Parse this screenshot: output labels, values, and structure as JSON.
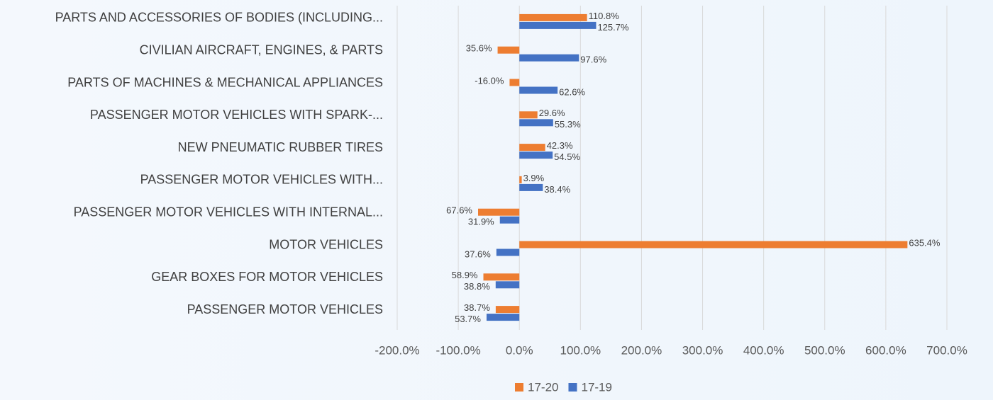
{
  "chart_data": {
    "type": "barh",
    "categories": [
      "PARTS AND ACCESSORIES OF BODIES (INCLUDING...",
      "CIVILIAN AIRCRAFT, ENGINES, & PARTS",
      "PARTS OF MACHINES & MECHANICAL APPLIANCES",
      "PASSENGER MOTOR VEHICLES WITH SPARK-...",
      "NEW PNEUMATIC RUBBER TIRES",
      "PASSENGER MOTOR VEHICLES WITH...",
      "PASSENGER MOTOR VEHICLES WITH INTERNAL...",
      "MOTOR VEHICLES",
      "GEAR BOXES FOR MOTOR VEHICLES",
      "PASSENGER MOTOR VEHICLES"
    ],
    "series": [
      {
        "name": "17-20",
        "color": "#ed7d31",
        "values": [
          110.8,
          -35.6,
          -16.0,
          29.6,
          42.3,
          3.9,
          -67.6,
          635.4,
          -58.9,
          -38.7
        ],
        "value_labels": [
          "110.8%",
          "35.6%",
          "-16.0%",
          "29.6%",
          "42.3%",
          "3.9%",
          "67.6%",
          "635.4%",
          "58.9%",
          "38.7%"
        ]
      },
      {
        "name": "17-19",
        "color": "#4472c4",
        "values": [
          125.7,
          97.6,
          62.6,
          55.3,
          54.5,
          38.4,
          -31.9,
          -37.6,
          -38.8,
          -53.7
        ],
        "value_labels": [
          "125.7%",
          "97.6%",
          "62.6%",
          "55.3%",
          "54.5%",
          "38.4%",
          "31.9%",
          "37.6%",
          "38.8%",
          "53.7%"
        ]
      }
    ],
    "xlim": [
      -200,
      700
    ],
    "xticks": [
      {
        "value": -200,
        "label": "-200.0%"
      },
      {
        "value": -100,
        "label": "-100.0%"
      },
      {
        "value": 0,
        "label": "0.0%"
      },
      {
        "value": 100,
        "label": "100.0%"
      },
      {
        "value": 200,
        "label": "200.0%"
      },
      {
        "value": 300,
        "label": "300.0%"
      },
      {
        "value": 400,
        "label": "400.0%"
      },
      {
        "value": 500,
        "label": "500.0%"
      },
      {
        "value": 600,
        "label": "600.0%"
      },
      {
        "value": 700,
        "label": "700.0%"
      }
    ],
    "grid": true,
    "legend": "bottom"
  }
}
